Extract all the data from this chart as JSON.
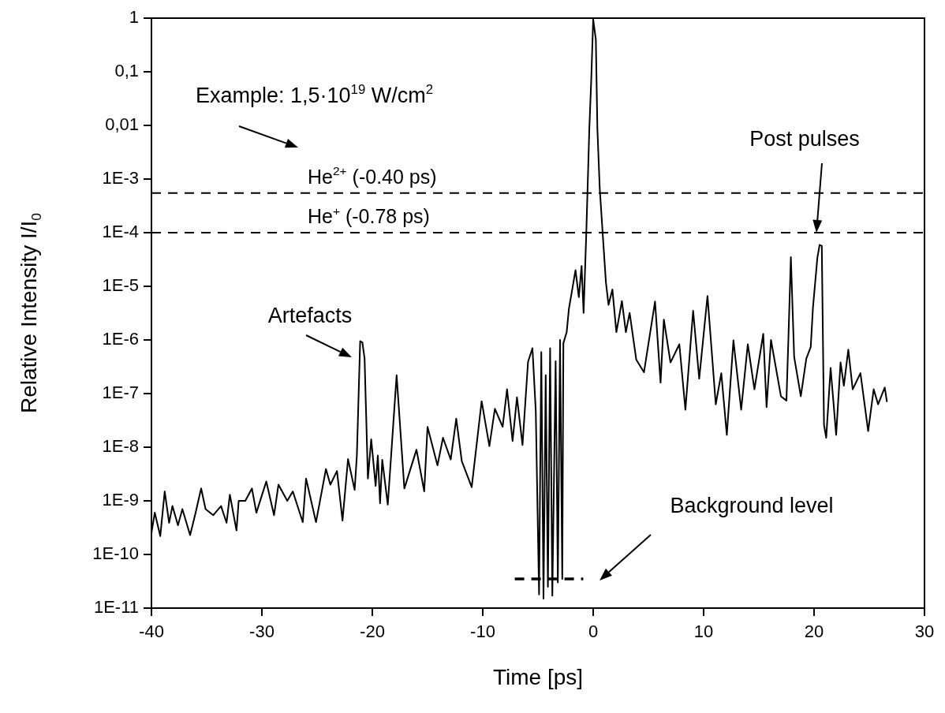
{
  "chart_data": {
    "type": "line",
    "xlabel": "Time [ps]",
    "ylabel": "Relative Intensity I/I$_{0}$",
    "log": "y",
    "xlim": [
      -40,
      30
    ],
    "xticks": [
      -40,
      -30,
      -20,
      -10,
      0,
      10,
      20,
      30
    ],
    "ylim": [
      1e-11,
      1
    ],
    "yticks": [
      {
        "value": 1e-11,
        "label": "1E-11"
      },
      {
        "value": 1e-10,
        "label": "1E-10"
      },
      {
        "value": 1e-09,
        "label": "1E-9"
      },
      {
        "value": 1e-08,
        "label": "1E-8"
      },
      {
        "value": 1e-07,
        "label": "1E-7"
      },
      {
        "value": 1e-06,
        "label": "1E-6"
      },
      {
        "value": 1e-05,
        "label": "1E-5"
      },
      {
        "value": 0.0001,
        "label": "1E-4"
      },
      {
        "value": 0.001,
        "label": "1E-3"
      },
      {
        "value": 0.01,
        "label": "0,01"
      },
      {
        "value": 0.1,
        "label": "0,1"
      },
      1
    ],
    "series": [
      {
        "type": "line",
        "color": "#000000",
        "x": [
          -40,
          -39.7,
          -39.2,
          -38.8,
          -38.4,
          -38.1,
          -37.6,
          -37.2,
          -36.5,
          -36,
          -35.5,
          -35.1,
          -34.4,
          -33.7,
          -33.2,
          -32.9,
          -32.3,
          -32.1,
          -31.5,
          -30.9,
          -30.5,
          -29.6,
          -28.9,
          -28.5,
          -27.7,
          -27.2,
          -26.3,
          -26,
          -25.1,
          -24.2,
          -23.8,
          -23.2,
          -22.7,
          -22.2,
          -21.6,
          -21.4,
          -21.1,
          -20.9,
          -20.7,
          -20.4,
          -20.1,
          -19.7,
          -19.5,
          -19.3,
          -19.1,
          -18.6,
          -17.8,
          -17.1,
          -16,
          -15.3,
          -15,
          -14.1,
          -13.6,
          -12.9,
          -12.4,
          -11.9,
          -11,
          -10.1,
          -9.4,
          -8.9,
          -8.2,
          -7.8,
          -7.3,
          -6.9,
          -6.4,
          -5.9,
          -5.5,
          -5.2,
          -4.9,
          -4.7,
          -4.5,
          -4.3,
          -4.1,
          -3.9,
          -3.7,
          -3.4,
          -3.2,
          -3,
          -2.8,
          -2.7,
          -2.4,
          -2.2,
          -1.9,
          -1.6,
          -1.3,
          -1.05,
          -0.87,
          -0.63,
          -0.35,
          -0.17,
          0,
          0.24,
          0.38,
          0.59,
          0.87,
          1.15,
          1.39,
          1.74,
          2.1,
          2.6,
          2.96,
          3.3,
          3.9,
          4.6,
          5.6,
          6.1,
          6.4,
          7,
          7.8,
          8.35,
          9.05,
          9.6,
          10.35,
          11.1,
          11.6,
          12.1,
          12.7,
          13.4,
          14,
          14.6,
          15.4,
          15.7,
          16.1,
          17,
          17.5,
          17.7,
          17.9,
          18.2,
          18.8,
          19.3,
          19.7,
          19.9,
          20.3,
          20.5,
          20.7,
          20.9,
          21.1,
          21.5,
          22,
          22.4,
          22.7,
          23.1,
          23.5,
          24.2,
          24.9,
          25.4,
          25.8,
          26.4,
          26.6
        ],
        "values": [
          2.5e-10,
          6e-10,
          2.2e-10,
          1.5e-09,
          3.9e-10,
          8e-10,
          3.5e-10,
          7e-10,
          2.3e-10,
          6e-10,
          1.7e-09,
          7e-10,
          5.4e-10,
          8e-10,
          3.9e-10,
          1.3e-09,
          2.8e-10,
          1e-09,
          1e-09,
          1.7e-09,
          6e-10,
          2.3e-09,
          5.4e-10,
          2e-09,
          1e-09,
          1.5e-09,
          4e-10,
          2.6e-09,
          4e-10,
          3.9e-09,
          2e-09,
          3.6e-09,
          4.3e-10,
          6e-09,
          1.6e-09,
          7e-09,
          9.5e-07,
          9e-07,
          4.5e-07,
          2.6e-09,
          1.4e-08,
          1.9e-09,
          7e-09,
          9e-10,
          5.8e-09,
          8.5e-10,
          2.2e-07,
          1.7e-09,
          9e-09,
          1.5e-09,
          2.4e-08,
          4.6e-09,
          1.5e-08,
          5.9e-09,
          3.4e-08,
          5.5e-09,
          1.8e-09,
          7.2e-08,
          1.05e-08,
          5.2e-08,
          2.4e-08,
          1.2e-07,
          1.3e-08,
          8.5e-08,
          1.1e-08,
          3.9e-07,
          7e-07,
          4.8e-08,
          1.8e-11,
          5.9e-07,
          1.5e-11,
          2.2e-07,
          2.5e-11,
          7e-07,
          1.7e-11,
          4e-07,
          3e-11,
          1e-06,
          3.5e-11,
          8.7e-07,
          1.4e-06,
          3.8e-06,
          8.7e-06,
          2e-05,
          6.3e-06,
          2.4e-05,
          3.2e-06,
          9e-05,
          0.0086,
          0.076,
          0.95,
          0.4,
          0.0086,
          0.00069,
          9e-05,
          1.2e-05,
          4.5e-06,
          8.7e-06,
          1.4e-06,
          5.3e-06,
          1.4e-06,
          3.2e-06,
          4.3e-07,
          2.5e-07,
          5.2e-06,
          1.6e-07,
          2.4e-06,
          3.8e-07,
          8.3e-07,
          5e-08,
          3.5e-06,
          1.9e-07,
          6.6e-06,
          6.3e-08,
          2.4e-07,
          1.7e-08,
          9.8e-07,
          5e-08,
          8.3e-07,
          1.2e-07,
          1.3e-06,
          5.6e-08,
          1e-06,
          8.9e-08,
          7.4e-08,
          1.5e-06,
          3.5e-05,
          4.8e-07,
          8.9e-08,
          4.5e-07,
          7.4e-07,
          4e-06,
          3.4e-05,
          5.9e-05,
          5.7e-05,
          2.6e-08,
          1.5e-08,
          3e-07,
          1.7e-08,
          3.8e-07,
          1.4e-07,
          6.6e-07,
          1.2e-07,
          2.4e-07,
          2e-08,
          1.2e-07,
          6.3e-08,
          1.3e-07,
          7e-08
        ]
      },
      {
        "type": "line",
        "color": "#000000",
        "line_style": "dashed",
        "x": [
          -7.1,
          -0.9
        ],
        "values": [
          3.5e-11,
          3.5e-11
        ]
      }
    ],
    "ref_lines": [
      {
        "axis": "y",
        "value": 0.00055,
        "label": "He$^{2+}$ (-0.40 ps)",
        "line_style": "dashed",
        "color": "#000000"
      },
      {
        "axis": "y",
        "value": 0.0001,
        "label": "He$^{+}$ (-0.78 ps)",
        "line_style": "dashed",
        "color": "#000000"
      }
    ],
    "annotations": [
      "Example: 1,5·10$^{19}$ W/cm$^{2}$",
      {
        "text": "Artefacts",
        "x": -21,
        "y": 1e-06
      },
      "Post pulses",
      "Background level"
    ]
  }
}
